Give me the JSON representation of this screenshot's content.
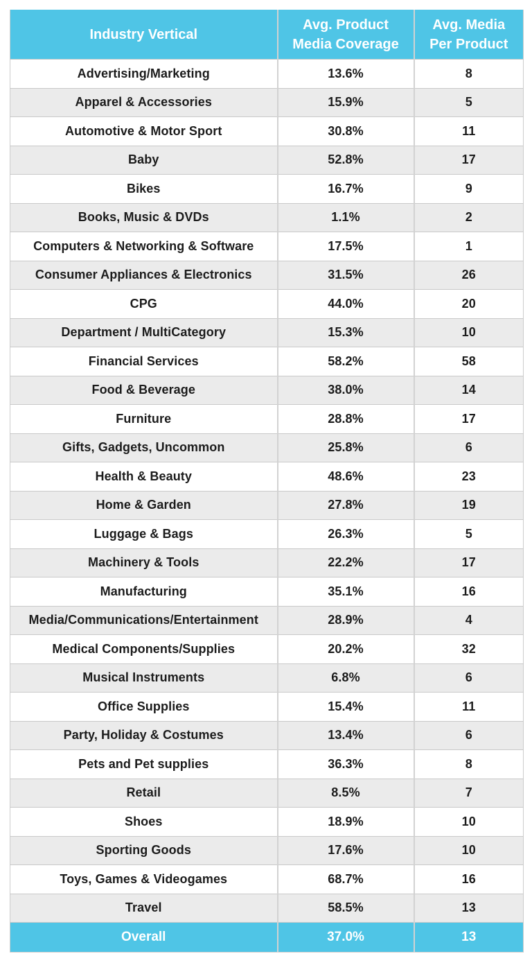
{
  "colors": {
    "accent_cyan": "#4FC5E6",
    "stripe_gray": "#EBEBEB",
    "grid_line": "#CFCFCF",
    "body_text": "#1B1B1B",
    "header_text": "#FFFFFF"
  },
  "chart_data": {
    "type": "table",
    "columns": [
      "Industry Vertical",
      "Avg. Product Media Coverage",
      "Avg. Media Per Product"
    ],
    "rows": [
      [
        "Advertising/Marketing",
        "13.6%",
        "8"
      ],
      [
        "Apparel & Accessories",
        "15.9%",
        "5"
      ],
      [
        "Automotive & Motor Sport",
        "30.8%",
        "11"
      ],
      [
        "Baby",
        "52.8%",
        "17"
      ],
      [
        "Bikes",
        "16.7%",
        "9"
      ],
      [
        "Books, Music & DVDs",
        "1.1%",
        "2"
      ],
      [
        "Computers & Networking & Software",
        "17.5%",
        "1"
      ],
      [
        "Consumer Appliances & Electronics",
        "31.5%",
        "26"
      ],
      [
        "CPG",
        "44.0%",
        "20"
      ],
      [
        "Department / MultiCategory",
        "15.3%",
        "10"
      ],
      [
        "Financial Services",
        "58.2%",
        "58"
      ],
      [
        "Food & Beverage",
        "38.0%",
        "14"
      ],
      [
        "Furniture",
        "28.8%",
        "17"
      ],
      [
        "Gifts, Gadgets, Uncommon",
        "25.8%",
        "6"
      ],
      [
        "Health & Beauty",
        "48.6%",
        "23"
      ],
      [
        "Home & Garden",
        "27.8%",
        "19"
      ],
      [
        "Luggage & Bags",
        "26.3%",
        "5"
      ],
      [
        "Machinery & Tools",
        "22.2%",
        "17"
      ],
      [
        "Manufacturing",
        "35.1%",
        "16"
      ],
      [
        "Media/Communications/Entertainment",
        "28.9%",
        "4"
      ],
      [
        "Medical Components/Supplies",
        "20.2%",
        "32"
      ],
      [
        "Musical Instruments",
        "6.8%",
        "6"
      ],
      [
        "Office Supplies",
        "15.4%",
        "11"
      ],
      [
        "Party, Holiday & Costumes",
        "13.4%",
        "6"
      ],
      [
        "Pets and Pet supplies",
        "36.3%",
        "8"
      ],
      [
        "Retail",
        "8.5%",
        "7"
      ],
      [
        "Shoes",
        "18.9%",
        "10"
      ],
      [
        "Sporting Goods",
        "17.6%",
        "10"
      ],
      [
        "Toys, Games & Videogames",
        "68.7%",
        "16"
      ],
      [
        "Travel",
        "58.5%",
        "13"
      ]
    ],
    "footer": [
      "Overall",
      "37.0%",
      "13"
    ]
  }
}
